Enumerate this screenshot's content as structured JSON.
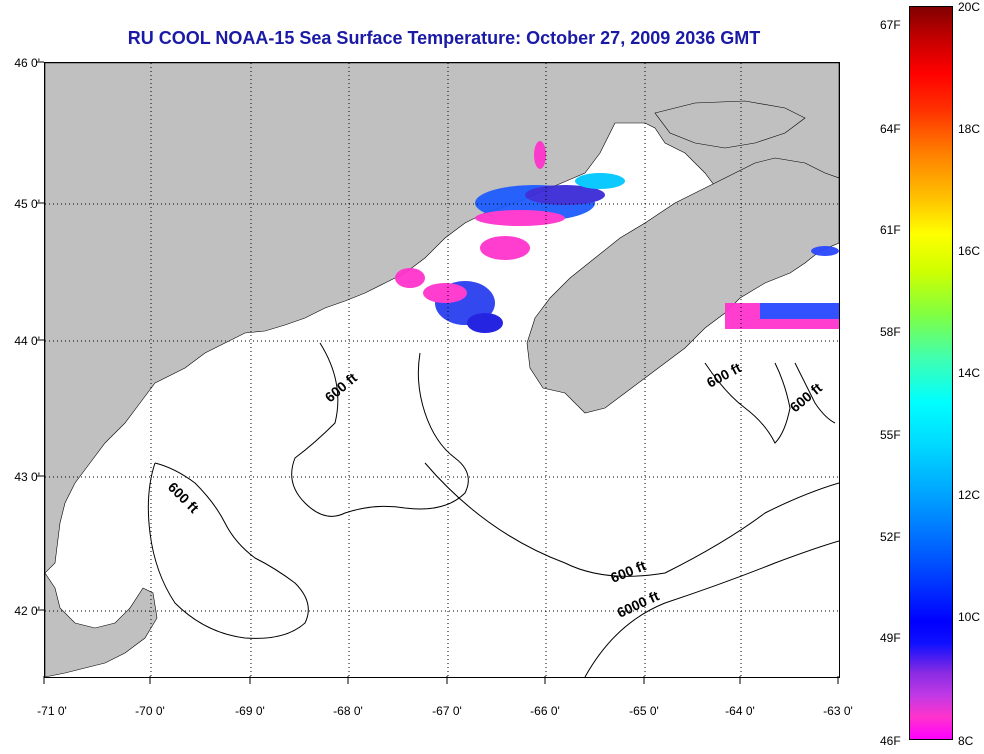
{
  "title": "RU COOL  NOAA-15  Sea Surface Temperature:  October 27, 2009 2036 GMT",
  "map": {
    "x_axis_labels": [
      "-71 0'",
      "-70 0'",
      "-69 0'",
      "-68 0'",
      "-67 0'",
      "-66 0'",
      "-65 0'",
      "-64 0'",
      "-63 0'"
    ],
    "y_axis_labels": [
      "46 0'",
      "45 0'",
      "44 0'",
      "43 0'",
      "42 0'"
    ],
    "contour_labels": [
      "600 ft",
      "600 ft",
      "600 ft",
      "600 ft",
      "600 ft",
      "6000 ft"
    ],
    "colors": {
      "land": "#c0c0c0",
      "ocean": "#ffffff",
      "grid": "#000000",
      "title": "#1a1aa6"
    }
  },
  "colorbar": {
    "fahrenheit_labels": [
      "67F",
      "64F",
      "61F",
      "58F",
      "55F",
      "52F",
      "49F",
      "46F"
    ],
    "celsius_labels": [
      "20C",
      "18C",
      "16C",
      "14C",
      "12C",
      "10C",
      "8C"
    ],
    "range_c": [
      8,
      20
    ]
  }
}
